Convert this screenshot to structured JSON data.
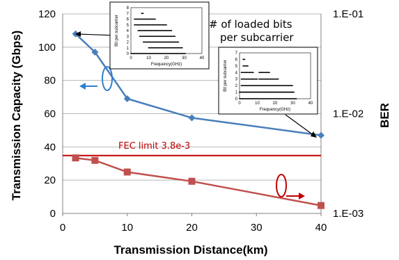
{
  "chart_data": [
    {
      "type": "line",
      "xlabel": "Transmission Distance(km)",
      "ylabel": "Transmission Capacity (Gbps)",
      "ylabel_right": "BER",
      "xlim": [
        0,
        40
      ],
      "ylim": [
        0,
        120
      ],
      "yscale_right": "log",
      "ylim_right": [
        0.001,
        0.1
      ],
      "x_ticks": [
        "0",
        "10",
        "20",
        "30",
        "40"
      ],
      "y_ticks": [
        "0",
        "20",
        "40",
        "60",
        "80",
        "100",
        "120"
      ],
      "y_right_ticks": [
        "1.E-03",
        "1.E-02",
        "1.E-01"
      ],
      "grid": true,
      "series": [
        {
          "axis": "left",
          "color": "#4a7ebb",
          "marker": "diamond",
          "x": [
            2,
            5,
            10,
            20,
            40
          ],
          "y": [
            108,
            97,
            69,
            57.5,
            47
          ]
        },
        {
          "axis": "right",
          "color": "#c0504d",
          "marker": "square",
          "x": [
            2,
            5,
            10,
            20,
            40
          ],
          "y": [
            0.0036,
            0.0034,
            0.0026,
            0.0021,
            0.0012
          ]
        }
      ],
      "threshold": {
        "label": "FEC limit 3.8e-3",
        "value": 0.0038,
        "axis": "right",
        "color": "#c00000"
      },
      "annotation": "# of loaded bits per subcarrier"
    },
    {
      "type": "scatter",
      "inset": "top",
      "xlabel": "Frequency(GHz)",
      "ylabel": "Bit per subcarrier",
      "xlim": [
        0,
        40
      ],
      "ylim": [
        0,
        8
      ],
      "x_ticks": [
        "0",
        "10",
        "20",
        "30",
        "40"
      ],
      "y_ticks": [
        "0",
        "1",
        "2",
        "3",
        "4",
        "5",
        "6",
        "7",
        "8"
      ]
    },
    {
      "type": "scatter",
      "inset": "right",
      "xlabel": "Frequency(GHz)",
      "ylabel": "Bit per subcarrier",
      "xlim": [
        0,
        40
      ],
      "ylim": [
        0,
        7
      ],
      "x_ticks": [
        "0",
        "10",
        "20",
        "30",
        "40"
      ],
      "y_ticks": [
        "0",
        "1",
        "2",
        "3",
        "4",
        "5",
        "6",
        "7"
      ]
    }
  ]
}
